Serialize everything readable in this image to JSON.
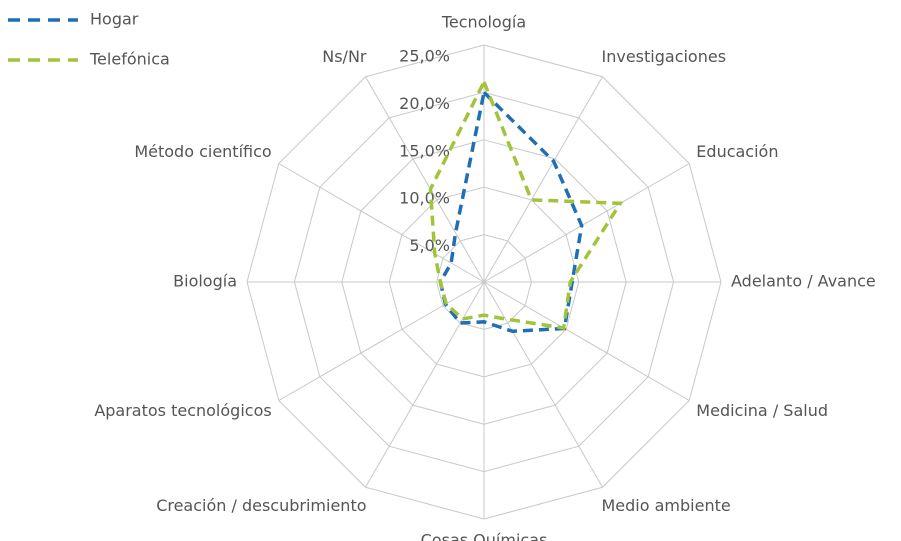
{
  "chart_data": {
    "type": "radar",
    "categories": [
      "Tecnología",
      "Investigaciones",
      "Educación",
      "Adelanto / Avance",
      "Medicina / Salud",
      "Medio ambiente",
      "Cosas Químicas",
      "Creación / descubrimiento",
      "Aparatos tecnológicos",
      "Biología",
      "Método científico",
      "Ns/Nr"
    ],
    "series": [
      {
        "name": "Hogar",
        "color": "#1f6fb4",
        "values": [
          20.0,
          14.7,
          11.9,
          9.3,
          9.8,
          6.0,
          4.2,
          5.0,
          4.7,
          4.6,
          4.0,
          6.0
        ]
      },
      {
        "name": "Telefónica",
        "color": "#a1c43a",
        "values": [
          21.1,
          10.0,
          16.6,
          9.1,
          9.7,
          4.5,
          3.5,
          4.5,
          4.6,
          4.6,
          6.0,
          11.3
        ]
      }
    ],
    "ylim": [
      0,
      25
    ],
    "yticks": [
      {
        "value": 5,
        "label": "5,0%"
      },
      {
        "value": 10,
        "label": "10,0%"
      },
      {
        "value": 15,
        "label": "15,0%"
      },
      {
        "value": 20,
        "label": "20,0%"
      },
      {
        "value": 25,
        "label": "25,0%"
      }
    ],
    "grid": true,
    "legend": "top-left"
  }
}
